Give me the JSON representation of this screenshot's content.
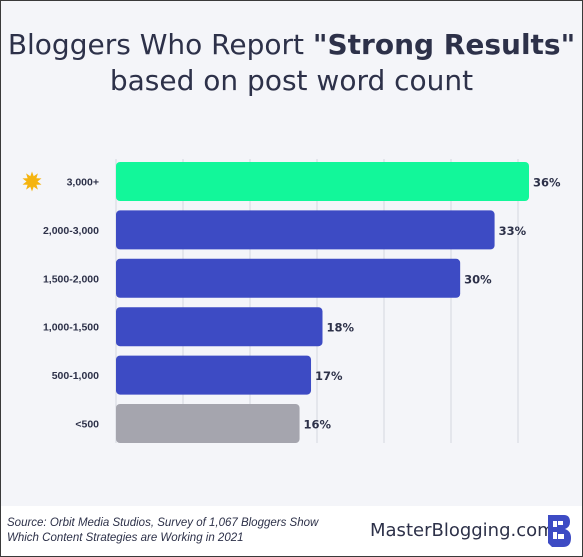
{
  "title": {
    "part1": "Bloggers Who Report ",
    "bold": "\"Strong Results\"",
    "line2": "based on post word count"
  },
  "footer": {
    "source_line1": "Source: Orbit Media Studios, Survey of 1,067 Bloggers Show",
    "source_line2": "Which Content Strategies are Working in 2021",
    "brand": "MasterBlogging.com"
  },
  "chart_data": {
    "type": "bar",
    "orientation": "horizontal",
    "categories": [
      "3,000+",
      "2,000-3,000",
      "1,500-2,000",
      "1,000-1,500",
      "500-1,000",
      "<500"
    ],
    "values": [
      36,
      33,
      30,
      18,
      17,
      16
    ],
    "value_labels": [
      "36%",
      "33%",
      "30%",
      "18%",
      "17%",
      "16%"
    ],
    "highlight_category": "3,000+",
    "grid": true,
    "colors": {
      "highlight": "#12f79a",
      "default": "#3d4bc4",
      "last": "#a5a5ae",
      "text": "#2d3149",
      "grid": "#d4d6df",
      "star": "#f5b40f"
    }
  }
}
